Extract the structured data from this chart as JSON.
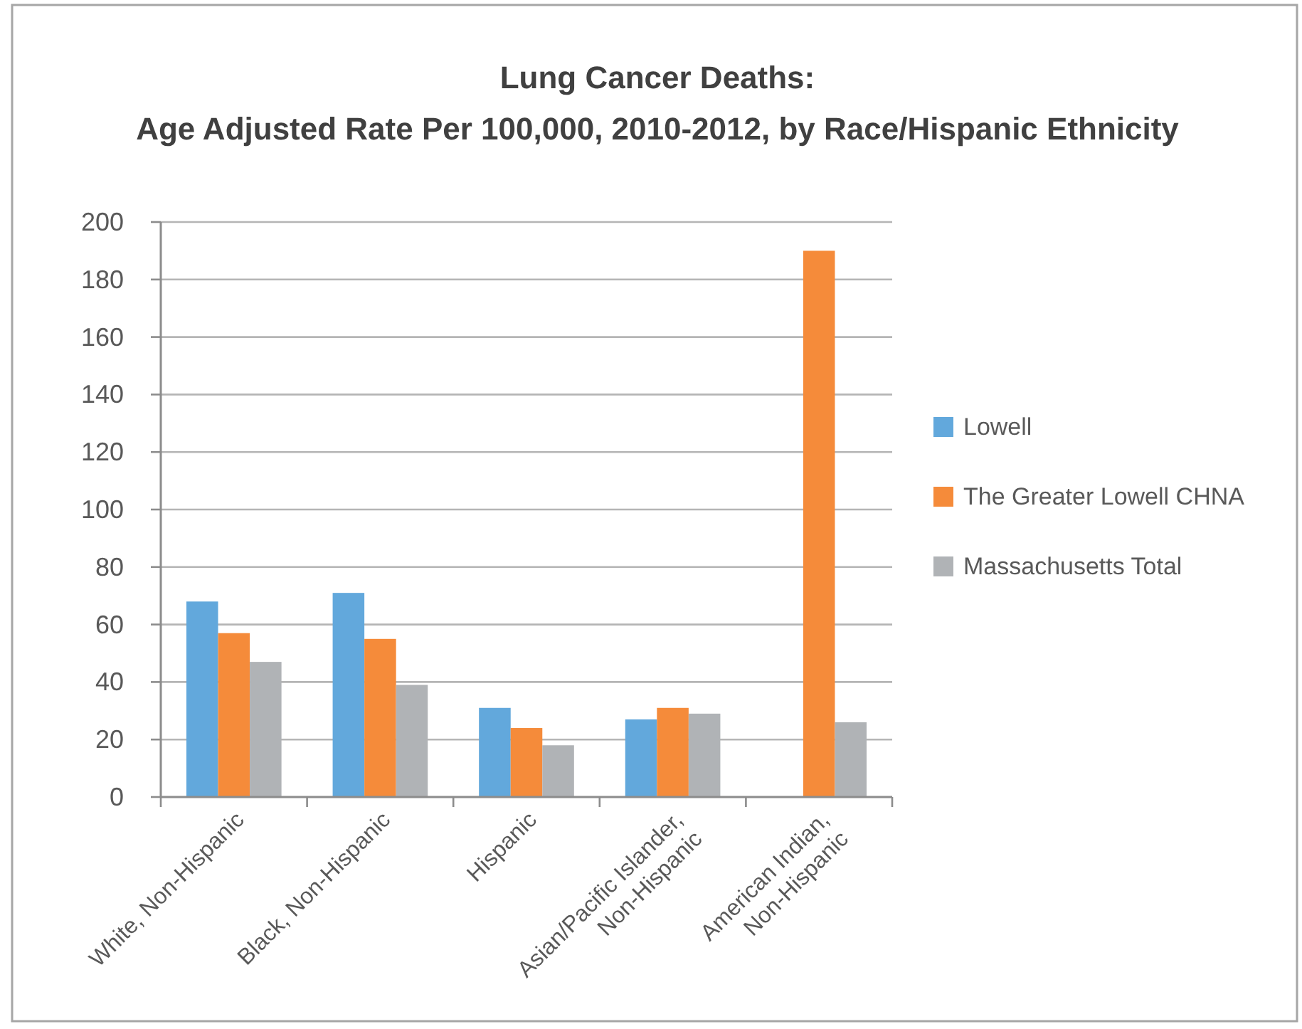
{
  "chart_data": {
    "type": "bar",
    "title": "Lung Cancer Deaths:\nAge Adjusted Rate Per 100,000, 2010-2012, by Race/Hispanic Ethnicity",
    "categories": [
      "White, Non-Hispanic",
      "Black, Non-Hispanic",
      "Hispanic",
      "Asian/Pacific Islander,\nNon-Hispanic",
      "American Indian,\nNon-Hispanic"
    ],
    "series": [
      {
        "name": "Lowell",
        "color": "#62a8dc",
        "values": [
          68,
          71,
          31,
          27,
          null
        ]
      },
      {
        "name": "The Greater Lowell CHNA",
        "color": "#f58b3a",
        "values": [
          57,
          55,
          24,
          31,
          190
        ]
      },
      {
        "name": "Massachusetts Total",
        "color": "#b0b3b6",
        "values": [
          47,
          39,
          18,
          29,
          26
        ]
      }
    ],
    "ylim": [
      0,
      200
    ],
    "yticks": [
      0,
      20,
      40,
      60,
      80,
      100,
      120,
      140,
      160,
      180,
      200
    ],
    "grid": "y",
    "legend": "right"
  }
}
